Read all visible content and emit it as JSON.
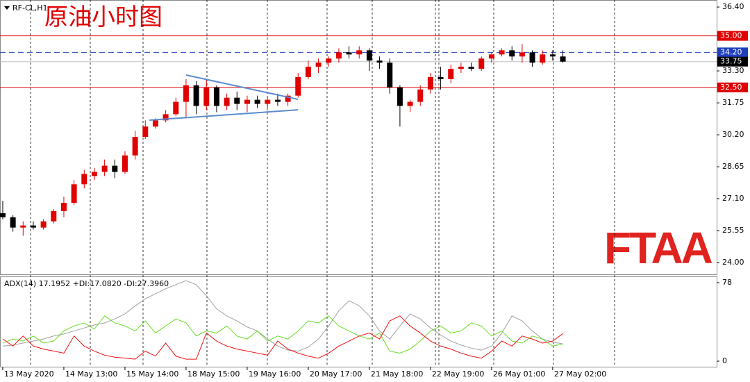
{
  "chart_data": [
    {
      "type": "candlestick",
      "symbol": "RF-CL,H1",
      "title": "原油小时图",
      "logo": "FTAA",
      "up_color": "#e00000",
      "down_color": "#000000",
      "open": [
        26.4,
        26.2,
        25.7,
        25.8,
        25.7,
        26.0,
        26.5,
        26.9,
        27.8,
        28.2,
        28.4,
        28.7,
        28.4,
        29.2,
        30.1,
        30.6,
        30.9,
        31.2,
        31.8,
        32.6,
        31.6,
        32.5,
        31.6,
        32.0,
        31.7,
        31.9,
        31.7,
        31.9,
        31.8,
        32.1,
        33.0,
        33.5,
        33.7,
        33.9,
        34.2,
        34.1,
        34.3,
        33.8,
        33.7,
        32.5,
        31.6,
        31.8,
        32.4,
        33.0,
        32.9,
        33.4,
        33.5,
        33.4,
        33.9,
        34.1,
        34.3,
        34.0,
        34.2,
        33.7,
        34.1,
        34.0
      ],
      "high": [
        27.0,
        26.3,
        26.0,
        26.0,
        26.1,
        26.6,
        27.2,
        28.0,
        28.5,
        28.6,
        29.0,
        29.0,
        29.4,
        30.4,
        30.9,
        31.0,
        31.4,
        32.0,
        32.9,
        32.8,
        32.9,
        32.6,
        32.2,
        32.3,
        32.1,
        32.1,
        32.0,
        32.2,
        32.2,
        33.2,
        33.8,
        33.9,
        34.0,
        34.4,
        34.5,
        34.5,
        34.4,
        34.0,
        33.9,
        32.6,
        31.9,
        32.6,
        33.2,
        33.5,
        33.6,
        33.7,
        33.7,
        34.0,
        34.2,
        34.4,
        34.5,
        34.6,
        34.3,
        34.3,
        34.3,
        34.3
      ],
      "low": [
        26.1,
        25.5,
        25.3,
        25.6,
        25.6,
        25.9,
        26.2,
        26.8,
        27.6,
        28.0,
        28.2,
        28.1,
        28.3,
        29.0,
        30.0,
        30.5,
        30.8,
        31.1,
        31.0,
        31.2,
        31.4,
        31.3,
        31.4,
        31.4,
        31.3,
        31.5,
        31.5,
        31.6,
        31.6,
        32.0,
        32.9,
        33.2,
        33.5,
        33.7,
        33.9,
        33.9,
        33.3,
        33.4,
        32.2,
        30.6,
        31.3,
        31.6,
        32.2,
        32.4,
        32.7,
        33.2,
        33.3,
        33.3,
        33.7,
        34.0,
        33.8,
        33.7,
        33.5,
        33.6,
        33.8,
        33.7
      ],
      "close": [
        26.2,
        25.7,
        25.8,
        25.7,
        26.0,
        26.5,
        26.9,
        27.8,
        28.3,
        28.4,
        28.7,
        28.4,
        29.2,
        30.1,
        30.6,
        30.9,
        31.2,
        31.8,
        32.6,
        31.6,
        32.5,
        31.6,
        32.0,
        31.7,
        31.9,
        31.7,
        31.9,
        31.8,
        32.1,
        33.0,
        33.5,
        33.7,
        33.9,
        34.2,
        34.1,
        34.3,
        33.8,
        33.7,
        32.5,
        31.6,
        31.8,
        32.4,
        33.0,
        32.9,
        33.4,
        33.5,
        33.4,
        33.9,
        34.1,
        34.3,
        34.0,
        34.2,
        33.7,
        34.1,
        34.0,
        33.75
      ],
      "xlim": [
        -0.27,
        70.1
      ],
      "xticks": [
        {
          "value": 0,
          "label": "13 May 2020"
        },
        {
          "value": 6,
          "label": "14 May 13:00"
        },
        {
          "value": 12,
          "label": "15 May 14:00"
        },
        {
          "value": 18,
          "label": "18 May 15:00"
        },
        {
          "value": 24,
          "label": "19 May 16:00"
        },
        {
          "value": 30,
          "label": "20 May 17:00"
        },
        {
          "value": 36,
          "label": "21 May 18:00"
        },
        {
          "value": 42,
          "label": "22 May 19:00"
        },
        {
          "value": 48,
          "label": "26 May 01:00"
        },
        {
          "value": 54,
          "label": "27 May 02:00"
        }
      ],
      "ylim": [
        23.43,
        36.74
      ],
      "yticks": [
        {
          "value": 36.4,
          "label": "36.40"
        },
        {
          "value": 33.3,
          "label": "33.30"
        },
        {
          "value": 31.75,
          "label": "31.75"
        },
        {
          "value": 30.2,
          "label": "30.20"
        },
        {
          "value": 28.65,
          "label": "28.65"
        },
        {
          "value": 27.1,
          "label": "27.10"
        },
        {
          "value": 25.55,
          "label": "25.55"
        },
        {
          "value": 24,
          "label": "24.00"
        }
      ],
      "levels": [
        {
          "value": 35,
          "label": "35.00",
          "color": "#e00000",
          "dashed": false
        },
        {
          "value": 34.2,
          "label": "34.20",
          "color": "#1f3fbf",
          "dashed": true
        },
        {
          "value": 33.75,
          "label": "33.75",
          "color": "#000000",
          "dashed": false
        },
        {
          "value": 32.5,
          "label": "32.50",
          "color": "#e00000",
          "dashed": false
        }
      ],
      "trendlines": [
        {
          "x": [
            18,
            29
          ],
          "y": [
            33.1,
            31.92
          ],
          "color": "#5b8ccf"
        },
        {
          "x": [
            14.4,
            29
          ],
          "y": [
            30.91,
            31.41
          ],
          "color": "#5b8ccf"
        }
      ]
    },
    {
      "type": "line",
      "title": "ADX(14) 17.1952 +DI:17.0820 -DI:27.3960",
      "ylim": [
        -5.5,
        84.2
      ],
      "yticks": [
        78,
        0
      ],
      "series": [
        {
          "name": "ADX",
          "color": "#a0a0a0",
          "values": [
            15,
            16,
            18,
            20,
            22,
            25,
            27,
            30,
            33,
            36,
            38,
            42,
            47,
            55,
            62,
            67,
            72,
            76,
            80,
            76,
            65,
            52,
            45,
            40,
            34,
            30,
            22,
            15,
            11,
            10,
            14,
            22,
            35,
            50,
            60,
            55,
            45,
            30,
            22,
            35,
            47,
            42,
            33,
            26,
            20,
            16,
            13,
            11,
            15,
            28,
            45,
            40,
            30,
            22,
            19,
            17.2
          ]
        },
        {
          "name": "+DI",
          "color": "#66dd22",
          "values": [
            18,
            22,
            20,
            25,
            18,
            20,
            30,
            35,
            38,
            32,
            45,
            38,
            35,
            30,
            40,
            28,
            35,
            42,
            38,
            25,
            30,
            28,
            35,
            25,
            22,
            30,
            20,
            25,
            22,
            30,
            40,
            38,
            45,
            35,
            30,
            25,
            22,
            28,
            10,
            8,
            12,
            20,
            30,
            35,
            28,
            30,
            38,
            35,
            25,
            30,
            20,
            18,
            25,
            22,
            15,
            17.08
          ]
        },
        {
          "name": "-DI",
          "color": "#ee1111",
          "values": [
            22,
            15,
            25,
            15,
            12,
            10,
            8,
            25,
            15,
            10,
            6,
            4,
            3,
            2,
            10,
            5,
            18,
            5,
            2,
            2,
            28,
            20,
            15,
            12,
            10,
            8,
            6,
            20,
            12,
            8,
            5,
            3,
            8,
            15,
            20,
            25,
            28,
            22,
            40,
            45,
            35,
            28,
            20,
            15,
            12,
            8,
            5,
            3,
            10,
            20,
            15,
            25,
            22,
            18,
            20,
            27.4
          ]
        }
      ]
    }
  ]
}
